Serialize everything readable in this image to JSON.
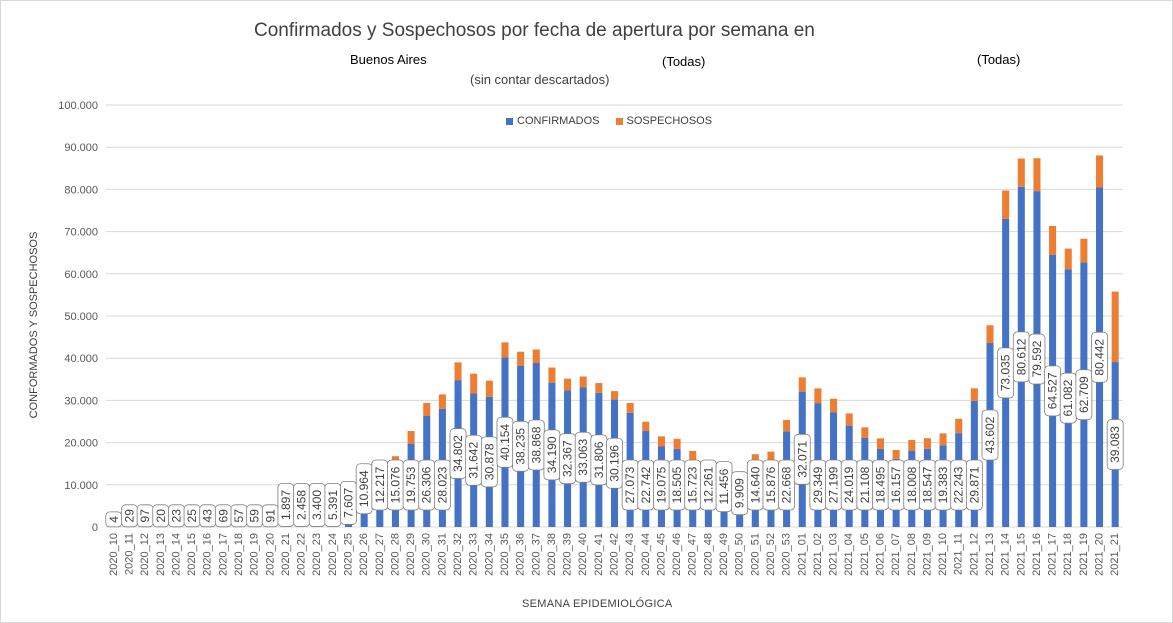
{
  "chart_data": {
    "type": "bar",
    "stacked": true,
    "title": "Confirmados y Sospechosos por fecha de apertura por semana en",
    "subtitle_parts": [
      "Buenos Aires",
      "(Todas)",
      "(Todas)"
    ],
    "note": "(sin contar descartados)",
    "xlabel": "SEMANA EPIDEMIOLÓGICA",
    "ylabel": "CONFORMADOS Y SOSPECHOSOS",
    "ylim": [
      0,
      100000
    ],
    "yticks": [
      "0",
      "10.000",
      "20.000",
      "30.000",
      "40.000",
      "50.000",
      "60.000",
      "70.000",
      "80.000",
      "90.000",
      "100.000"
    ],
    "grid": true,
    "legend_position": "top",
    "categories": [
      "2020_10",
      "2020_11",
      "2020_12",
      "2020_13",
      "2020_14",
      "2020_15",
      "2020_16",
      "2020_17",
      "2020_18",
      "2020_19",
      "2020_20",
      "2020_21",
      "2020_22",
      "2020_23",
      "2020_24",
      "2020_25",
      "2020_26",
      "2020_27",
      "2020_28",
      "2020_29",
      "2020_30",
      "2020_31",
      "2020_32",
      "2020_33",
      "2020_34",
      "2020_35",
      "2020_36",
      "2020_37",
      "2020_38",
      "2020_39",
      "2020_40",
      "2020_41",
      "2020_42",
      "2020_43",
      "2020_44",
      "2020_45",
      "2020_46",
      "2020_47",
      "2020_48",
      "2020_49",
      "2020_50",
      "2020_51",
      "2020_52",
      "2020_53",
      "2021_01",
      "2021_02",
      "2021_03",
      "2021_04",
      "2021_05",
      "2021_06",
      "2021_07",
      "2021_08",
      "2021_09",
      "2021_10",
      "2021_11",
      "2021_12",
      "2021_13",
      "2021_14",
      "2021_15",
      "2021_16",
      "2021_17",
      "2021_18",
      "2021_19",
      "2021_20",
      "2021_21"
    ],
    "series": [
      {
        "name": "CONFIRMADOS",
        "color": "#4472c4",
        "values": [
          4,
          29,
          97,
          20,
          23,
          25,
          43,
          69,
          57,
          59,
          91,
          1897,
          2458,
          3400,
          5391,
          7607,
          10964,
          12217,
          15076,
          19753,
          26306,
          28023,
          34802,
          31642,
          30878,
          40154,
          38235,
          38868,
          34190,
          32367,
          33063,
          31806,
          30196,
          27073,
          22742,
          19075,
          18505,
          15723,
          12261,
          11456,
          9909,
          14640,
          15876,
          22668,
          32071,
          29349,
          27199,
          24019,
          21108,
          18495,
          16157,
          18008,
          18547,
          19383,
          22243,
          29871,
          43602,
          73035,
          80612,
          79592,
          64527,
          61082,
          62709,
          80442,
          39083
        ],
        "labels": [
          "4",
          "29",
          "97",
          "20",
          "23",
          "25",
          "43",
          "69",
          "57",
          "59",
          "91",
          "1.897",
          "2.458",
          "3.400",
          "5.391",
          "7.607",
          "10.964",
          "12.217",
          "15.076",
          "19.753",
          "26.306",
          "28.023",
          "34.802",
          "31.642",
          "30.878",
          "40.154",
          "38.235",
          "38.868",
          "34.190",
          "32.367",
          "33.063",
          "31.806",
          "30.196",
          "27.073",
          "22.742",
          "19.075",
          "18.505",
          "15.723",
          "12.261",
          "11.456",
          "9.909",
          "14.640",
          "15.876",
          "22.668",
          "32.071",
          "29.349",
          "27.199",
          "24.019",
          "21.108",
          "18.495",
          "16.157",
          "18.008",
          "18.547",
          "19.383",
          "22.243",
          "29.871",
          "43.602",
          "73.035",
          "80.612",
          "79.592",
          "64.527",
          "61.082",
          "62.709",
          "80.442",
          "39.083"
        ]
      },
      {
        "name": "SOSPECHOSOS",
        "color": "#ed7d31",
        "values": [
          0,
          0,
          0,
          0,
          0,
          0,
          0,
          0,
          0,
          0,
          0,
          0,
          0,
          0,
          0,
          0,
          1200,
          1800,
          1700,
          3000,
          3100,
          3400,
          4200,
          4700,
          3800,
          3600,
          3300,
          3200,
          3600,
          2800,
          2600,
          2300,
          2000,
          2300,
          2200,
          2400,
          2400,
          2300,
          2000,
          1800,
          1800,
          2600,
          2000,
          2700,
          3400,
          3500,
          3200,
          2900,
          2500,
          2500,
          2100,
          2600,
          2500,
          2800,
          3400,
          3000,
          4200,
          6700,
          6700,
          7800,
          6800,
          4900,
          5600,
          7600,
          16700
        ]
      }
    ]
  }
}
